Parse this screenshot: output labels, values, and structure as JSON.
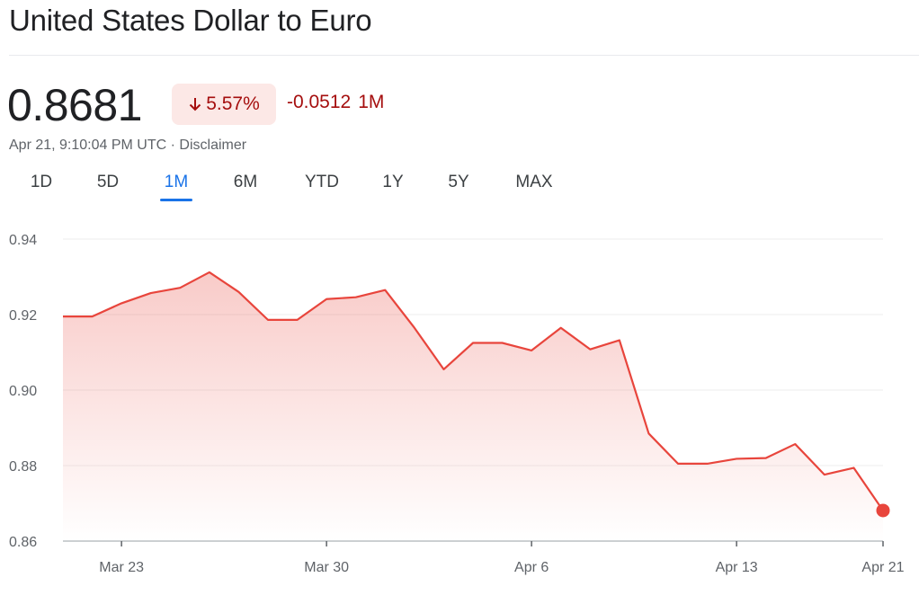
{
  "header": {
    "title": "United States Dollar to Euro"
  },
  "quote": {
    "price": "0.8681",
    "percent_change": "5.57%",
    "direction": "down",
    "abs_change": "-0.0512",
    "period": "1M",
    "timestamp": "Apr 21, 9:10:04 PM UTC · ",
    "disclaimer": "Disclaimer"
  },
  "tabs": [
    {
      "label": "1D",
      "active": false
    },
    {
      "label": "5D",
      "active": false
    },
    {
      "label": "1M",
      "active": true
    },
    {
      "label": "6M",
      "active": false
    },
    {
      "label": "YTD",
      "active": false
    },
    {
      "label": "1Y",
      "active": false
    },
    {
      "label": "5Y",
      "active": false
    },
    {
      "label": "MAX",
      "active": false
    }
  ],
  "colors": {
    "line": "#e8453c",
    "negative_text": "#a50e0e",
    "negative_bg": "#fce8e6",
    "accent": "#1a73e8",
    "grid": "#eeeeee"
  },
  "chart_data": {
    "type": "area",
    "ylim": [
      0.86,
      0.94
    ],
    "yticks": [
      "0.94",
      "0.92",
      "0.90",
      "0.88",
      "0.86"
    ],
    "yticks_values": [
      0.94,
      0.92,
      0.9,
      0.88,
      0.86
    ],
    "xticks": [
      {
        "label": "Mar 23",
        "index": 2
      },
      {
        "label": "Mar 30",
        "index": 9
      },
      {
        "label": "Apr 6",
        "index": 16
      },
      {
        "label": "Apr 13",
        "index": 23
      },
      {
        "label": "Apr 21",
        "index": 28
      }
    ],
    "x": [
      "Mar 21",
      "Mar 22",
      "Mar 23",
      "Mar 24",
      "Mar 25",
      "Mar 26",
      "Mar 27",
      "Mar 28",
      "Mar 29",
      "Mar 30",
      "Mar 31",
      "Apr 1",
      "Apr 2",
      "Apr 3",
      "Apr 4",
      "Apr 5",
      "Apr 6",
      "Apr 7",
      "Apr 8",
      "Apr 9",
      "Apr 10",
      "Apr 11",
      "Apr 12",
      "Apr 13",
      "Apr 14",
      "Apr 15",
      "Apr 16",
      "Apr 17",
      "Apr 21"
    ],
    "series": [
      {
        "values": [
          0.9195,
          0.9195,
          0.923,
          0.9257,
          0.9271,
          0.9312,
          0.926,
          0.9186,
          0.9186,
          0.9241,
          0.9246,
          0.9265,
          0.9165,
          0.9055,
          0.9125,
          0.9125,
          0.9105,
          0.9165,
          0.9108,
          0.9132,
          0.8885,
          0.8805,
          0.8805,
          0.8818,
          0.882,
          0.8857,
          0.8776,
          0.8794,
          0.8681
        ]
      }
    ],
    "grid": true
  }
}
